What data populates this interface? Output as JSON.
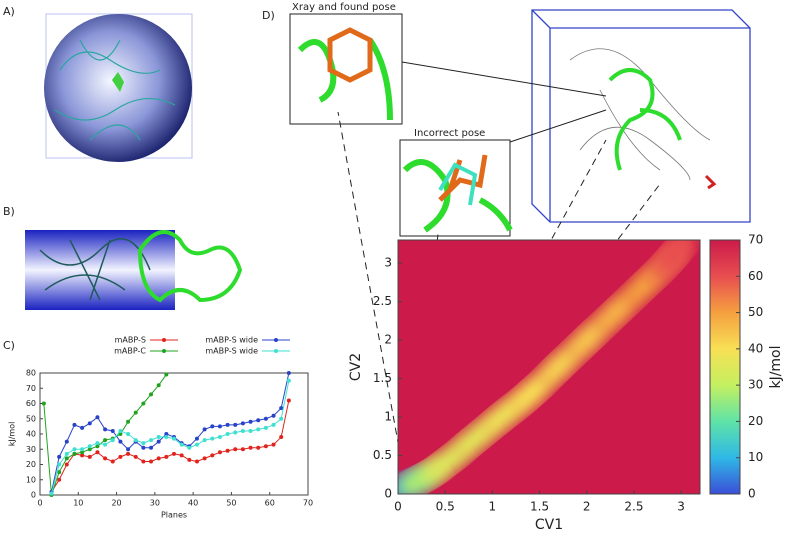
{
  "panel_labels": [
    "A)",
    "B)",
    "C)",
    "D)"
  ],
  "inset_captions": [
    "Xray and found pose",
    "Incorrect pose"
  ],
  "chart_data": [
    {
      "type": "line",
      "xlabel": "Planes",
      "ylabel": "kJ/mol",
      "x": [
        1,
        3,
        5,
        7,
        9,
        11,
        13,
        15,
        17,
        19,
        21,
        23,
        25,
        27,
        29,
        31,
        33,
        35,
        37,
        39,
        41,
        43,
        45,
        47,
        49,
        51,
        53,
        55,
        57,
        59,
        61,
        63,
        65
      ],
      "series": [
        {
          "name": "mABP-S",
          "color": "#e0241d",
          "values": [
            null,
            2,
            10,
            20,
            27,
            26,
            25,
            28,
            24,
            22,
            25,
            27,
            25,
            22,
            22,
            24,
            25,
            27,
            26,
            23,
            22,
            24,
            26,
            28,
            29,
            30,
            30,
            31,
            31,
            32,
            33,
            38,
            62
          ]
        },
        {
          "name": "mABP-C",
          "color": "#1fa31f",
          "values": [
            60,
            0,
            15,
            24,
            27,
            28,
            30,
            32,
            36,
            37,
            40,
            48,
            54,
            60,
            66,
            72,
            79,
            null,
            null,
            null,
            null,
            null,
            null,
            null,
            null,
            null,
            null,
            null,
            null,
            null,
            null,
            null,
            null
          ]
        },
        {
          "name": "mABP-S wide",
          "color": "#2843c9",
          "values": [
            null,
            2,
            25,
            35,
            46,
            44,
            47,
            51,
            43,
            42,
            35,
            30,
            35,
            31,
            31,
            35,
            40,
            38,
            34,
            32,
            37,
            43,
            45,
            45,
            46,
            46,
            47,
            48,
            49,
            50,
            52,
            57,
            80
          ]
        },
        {
          "name": "mABP-S wide",
          "color": "#3fe0d0",
          "values": [
            null,
            1,
            20,
            27,
            30,
            30,
            32,
            34,
            33,
            36,
            42,
            40,
            36,
            34,
            36,
            38,
            38,
            37,
            33,
            31,
            33,
            36,
            37,
            38,
            40,
            41,
            42,
            42,
            43,
            44,
            46,
            50,
            75
          ]
        }
      ],
      "xlim": [
        0,
        70
      ],
      "ylim": [
        0,
        80
      ],
      "xticks": [
        0,
        10,
        20,
        30,
        40,
        50,
        60,
        70
      ],
      "yticks": [
        0,
        10,
        20,
        30,
        40,
        50,
        60,
        70,
        80
      ]
    },
    {
      "type": "heatmap",
      "xlabel": "CV1",
      "ylabel": "CV2",
      "colorbar_label": "kJ/mol",
      "x": [
        0.1,
        0.25,
        0.5,
        0.8,
        1.1,
        1.4,
        1.7,
        2.0,
        2.3,
        2.6,
        2.85,
        2.95
      ],
      "y": [
        0.12,
        0.2,
        0.4,
        0.7,
        1.0,
        1.3,
        1.65,
        2.0,
        2.35,
        2.7,
        3.0,
        3.15
      ],
      "values": [
        8,
        28,
        35,
        36,
        38,
        40,
        42,
        44,
        47,
        50,
        55,
        60
      ],
      "xlim": [
        0,
        3.2
      ],
      "ylim": [
        0,
        3.3
      ],
      "zlim": [
        0,
        70
      ],
      "xticks": [
        0,
        0.5,
        1,
        1.5,
        2,
        2.5,
        3
      ],
      "yticks": [
        0,
        0.5,
        1,
        1.5,
        2,
        2.5,
        3
      ],
      "zticks": [
        0,
        10,
        20,
        30,
        40,
        50,
        60,
        70
      ],
      "colormap": [
        "#3a4fd8",
        "#2fb8e6",
        "#5fe3a8",
        "#c4f060",
        "#f8e055",
        "#f5a040",
        "#e84e50",
        "#cc1a4a"
      ]
    }
  ]
}
